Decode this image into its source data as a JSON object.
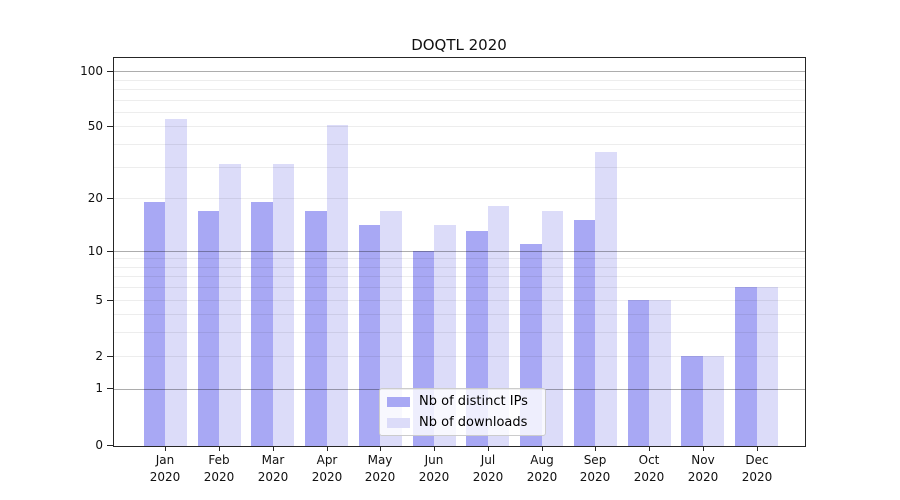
{
  "title": "DOQTL 2020",
  "legend": {
    "items": [
      {
        "label": "Nb of distinct IPs",
        "series": "ips"
      },
      {
        "label": "Nb of downloads",
        "series": "downloads"
      }
    ]
  },
  "x_axis": {
    "months": [
      "Jan",
      "Feb",
      "Mar",
      "Apr",
      "May",
      "Jun",
      "Jul",
      "Aug",
      "Sep",
      "Oct",
      "Nov",
      "Dec"
    ],
    "year": "2020"
  },
  "y_axis": {
    "tick_labels": [
      100,
      50,
      20,
      10,
      5,
      2,
      1,
      0
    ],
    "major_gridlines": [
      1,
      10,
      100
    ],
    "minor_gridlines": [
      2,
      3,
      4,
      5,
      6,
      7,
      8,
      9,
      20,
      30,
      40,
      50,
      60,
      70,
      80,
      90
    ]
  },
  "colors": {
    "ips": "#a8a8f4",
    "downloads": "#dcdcf9",
    "grid_major": "rgba(0,0,0,0.32)",
    "grid_minor": "rgba(0,0,0,0.07)",
    "spine": "#262626"
  },
  "chart_data": {
    "type": "bar",
    "title": "DOQTL 2020",
    "categories": [
      "Jan 2020",
      "Feb 2020",
      "Mar 2020",
      "Apr 2020",
      "May 2020",
      "Jun 2020",
      "Jul 2020",
      "Aug 2020",
      "Sep 2020",
      "Oct 2020",
      "Nov 2020",
      "Dec 2020"
    ],
    "series": [
      {
        "name": "Nb of distinct IPs",
        "values": [
          19,
          17,
          19,
          17,
          14,
          10,
          13,
          11,
          15,
          5,
          2,
          6
        ]
      },
      {
        "name": "Nb of downloads",
        "values": [
          55,
          31,
          31,
          51,
          17,
          14,
          18,
          17,
          36,
          5,
          2,
          6
        ]
      }
    ],
    "yscale": "log1p",
    "y_ticks": [
      0,
      1,
      2,
      5,
      10,
      20,
      50,
      100
    ],
    "ylim": [
      0,
      117
    ],
    "grid": true,
    "legend_position": "lower center"
  }
}
